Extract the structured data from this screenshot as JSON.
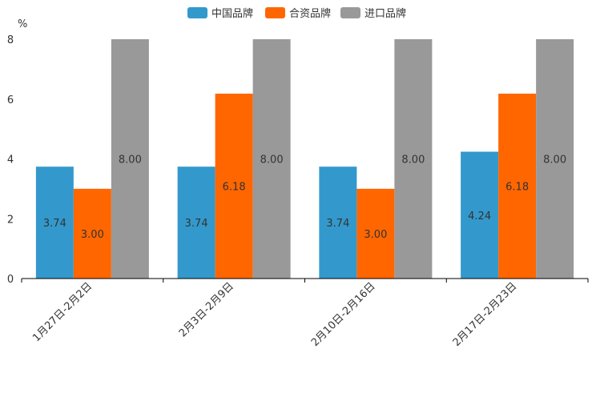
{
  "chart_data": {
    "type": "bar",
    "title": "",
    "ylabel": "%",
    "xlabel": "",
    "ylim": [
      0,
      8
    ],
    "yticks": [
      0,
      2,
      4,
      6,
      8
    ],
    "grid": false,
    "legend_position": "top-center",
    "categories": [
      "1月27日-2月2日",
      "2月3日-2月9日",
      "2月10日-2月16日",
      "2月17日-2月23日"
    ],
    "series": [
      {
        "name": "中国品牌",
        "color": "#3399cc",
        "values": [
          3.74,
          3.74,
          3.74,
          4.24
        ],
        "labels": [
          "3.74",
          "3.74",
          "3.74",
          "4.24"
        ]
      },
      {
        "name": "合资品牌",
        "color": "#ff6600",
        "values": [
          3.0,
          6.18,
          3.0,
          6.18
        ],
        "labels": [
          "3.00",
          "6.18",
          "3.00",
          "6.18"
        ]
      },
      {
        "name": "进口品牌",
        "color": "#999999",
        "values": [
          8.0,
          8.0,
          8.0,
          8.0
        ],
        "labels": [
          "8.00",
          "8.00",
          "8.00",
          "8.00"
        ]
      }
    ]
  }
}
